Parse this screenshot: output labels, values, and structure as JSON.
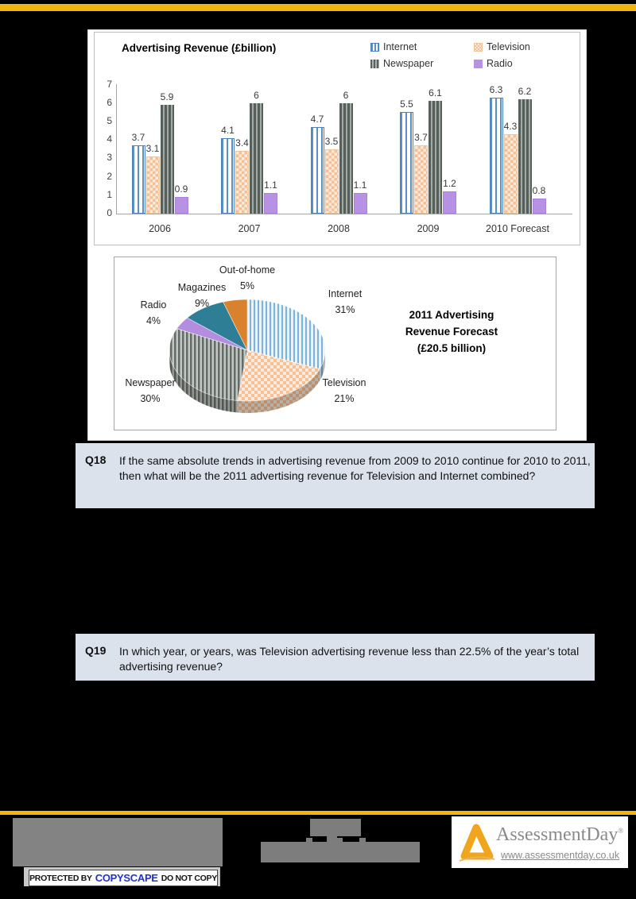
{
  "page": {
    "brand": {
      "name": "AssessmentDay",
      "registered": "®",
      "url": "www.assessmentday.co.uk"
    },
    "copyscape": {
      "protected_by": "PROTECTED BY",
      "brand": "COPYSCAPE",
      "do_not_copy": "DO NOT COPY"
    }
  },
  "questions": [
    {
      "id": "Q18",
      "text": "If the same absolute trends in advertising revenue from 2009 to 2010 continue for 2010 to 2011, then what will be the 2011 advertising revenue for Television and Internet combined?"
    },
    {
      "id": "Q19",
      "text": "In which year, or years, was Television advertising revenue less than 22.5% of the year’s total advertising revenue?"
    }
  ],
  "chart_data": [
    {
      "type": "bar",
      "title": "Advertising Revenue (£billion)",
      "categories": [
        "2006",
        "2007",
        "2008",
        "2009",
        "2010 Forecast"
      ],
      "series": [
        {
          "name": "Internet",
          "values": [
            3.7,
            4.1,
            4.7,
            5.5,
            6.3
          ],
          "color": "#4f81bd",
          "pattern": "vertical-stripes"
        },
        {
          "name": "Television",
          "values": [
            3.1,
            3.4,
            3.5,
            3.7,
            4.3
          ],
          "color": "#f8cbad",
          "pattern": "checker"
        },
        {
          "name": "Newspaper",
          "values": [
            5.9,
            6,
            6,
            6.1,
            6.2
          ],
          "color": "#636c68",
          "pattern": "vertical-stripes"
        },
        {
          "name": "Radio",
          "values": [
            0.9,
            1.1,
            1.1,
            1.2,
            0.8
          ],
          "color": "#b791e3",
          "pattern": "solid"
        }
      ],
      "ylabel": "",
      "xlabel": "",
      "ylim": [
        0,
        7
      ],
      "yticks": [
        0,
        1,
        2,
        3,
        4,
        5,
        6,
        7
      ],
      "grid": false,
      "legend_position": "top-right",
      "data_labels": true
    },
    {
      "type": "pie",
      "style": "3d",
      "title": "2011 Advertising Revenue Forecast (£20.5 billion)",
      "title_lines": [
        "2011 Advertising",
        "Revenue Forecast",
        "(£20.5 billion)"
      ],
      "unit": "percent",
      "slices": [
        {
          "label": "Internet",
          "value": 31,
          "color": "#a9cde9",
          "pattern": "vertical-stripes"
        },
        {
          "label": "Television",
          "value": 21,
          "color": "#f8cbad",
          "pattern": "checker"
        },
        {
          "label": "Newspaper",
          "value": 30,
          "color": "#8e9693",
          "pattern": "vertical-stripes"
        },
        {
          "label": "Radio",
          "value": 4,
          "color": "#b48ce0",
          "pattern": "solid"
        },
        {
          "label": "Magazines",
          "value": 9,
          "color": "#2e7e96",
          "pattern": "solid"
        },
        {
          "label": "Out-of-home",
          "value": 5,
          "color": "#d9822e",
          "pattern": "solid"
        }
      ]
    }
  ]
}
